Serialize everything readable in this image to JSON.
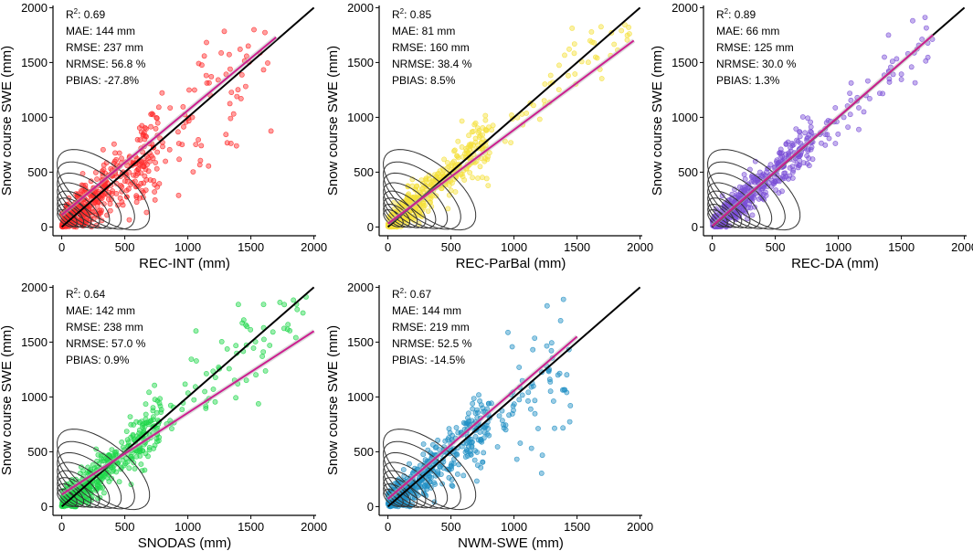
{
  "chart_data": [
    {
      "type": "scatter",
      "panel": "REC-INT",
      "xlabel": "REC-INT (mm)",
      "ylabel": "Snow course SWE (mm)",
      "xlim": [
        0,
        2000
      ],
      "ylim": [
        0,
        2000
      ],
      "xticks": [
        "0",
        "500",
        "1000",
        "1500",
        "2000"
      ],
      "yticks": [
        "0",
        "500",
        "1000",
        "1500",
        "2000"
      ],
      "point_color": "#ff2a2a",
      "fit_line": {
        "color": "#cc1f8f",
        "x": [
          0,
          1700
        ],
        "y": [
          110,
          1730
        ]
      },
      "one_to_one": {
        "color": "#000000",
        "x": [
          0,
          2000
        ],
        "y": [
          0,
          2000
        ]
      },
      "r2_label": "R",
      "r2_sup": "2",
      "r2_value": ": 0.69",
      "stats": [
        "MAE: 144 mm",
        "RMSE: 237 mm",
        "NRMSE: 56.8 %",
        "PBIAS: -27.8%"
      ],
      "point_spread": {
        "x_max": 1700,
        "skew": 0.55
      }
    },
    {
      "type": "scatter",
      "panel": "REC-ParBal",
      "xlabel": "REC-ParBal (mm)",
      "ylabel": "Snow course SWE (mm)",
      "xlim": [
        0,
        2000
      ],
      "ylim": [
        0,
        2000
      ],
      "xticks": [
        "0",
        "500",
        "1000",
        "1500",
        "2000"
      ],
      "yticks": [
        "0",
        "500",
        "1000",
        "1500",
        "2000"
      ],
      "point_color": "#f5e03a",
      "fit_line": {
        "color": "#cc1f8f",
        "x": [
          0,
          1950
        ],
        "y": [
          30,
          1700
        ]
      },
      "one_to_one": {
        "color": "#000000",
        "x": [
          0,
          2000
        ],
        "y": [
          0,
          2000
        ]
      },
      "r2_label": "R",
      "r2_sup": "2",
      "r2_value": ": 0.85",
      "stats": [
        "MAE: 81 mm",
        "RMSE: 160 mm",
        "NRMSE: 38.4 %",
        "PBIAS: 8.5%"
      ],
      "point_spread": {
        "x_max": 1950,
        "skew": 0.95
      }
    },
    {
      "type": "scatter",
      "panel": "REC-DA",
      "xlabel": "REC-DA (mm)",
      "ylabel": "Snow course SWE (mm)",
      "xlim": [
        0,
        2000
      ],
      "ylim": [
        0,
        2000
      ],
      "xticks": [
        "0",
        "500",
        "1000",
        "1500",
        "2000"
      ],
      "yticks": [
        "0",
        "500",
        "1000",
        "1500",
        "2000"
      ],
      "point_color": "#7b4fd6",
      "fit_line": {
        "color": "#cc1f8f",
        "x": [
          0,
          1750
        ],
        "y": [
          10,
          1750
        ]
      },
      "one_to_one": {
        "color": "#000000",
        "x": [
          0,
          2000
        ],
        "y": [
          0,
          2000
        ]
      },
      "r2_label": "R",
      "r2_sup": "2",
      "r2_value": ": 0.89",
      "stats": [
        "MAE: 66 mm",
        "RMSE: 125 mm",
        "NRMSE: 30.0 %",
        "PBIAS: 1.3%"
      ],
      "point_spread": {
        "x_max": 1750,
        "skew": 1.0
      }
    },
    {
      "type": "scatter",
      "panel": "SNODAS",
      "xlabel": "SNODAS (mm)",
      "ylabel": "Snow course SWE (mm)",
      "xlim": [
        0,
        2000
      ],
      "ylim": [
        0,
        2000
      ],
      "xticks": [
        "0",
        "500",
        "1000",
        "1500",
        "2000"
      ],
      "yticks": [
        "0",
        "500",
        "1000",
        "1500",
        "2000"
      ],
      "point_color": "#1fd64a",
      "fit_line": {
        "color": "#cc1f8f",
        "x": [
          0,
          2000
        ],
        "y": [
          110,
          1600
        ]
      },
      "one_to_one": {
        "color": "#000000",
        "x": [
          0,
          2000
        ],
        "y": [
          0,
          2000
        ]
      },
      "r2_label": "R",
      "r2_sup": "2",
      "r2_value": ": 0.64",
      "stats": [
        "MAE: 142 mm",
        "RMSE: 238 mm",
        "NRMSE: 57.0 %",
        "PBIAS: 0.9%"
      ],
      "point_spread": {
        "x_max": 1950,
        "skew": 0.85
      }
    },
    {
      "type": "scatter",
      "panel": "NWM-SWE",
      "xlabel": "NWM-SWE (mm)",
      "ylabel": "Snow course SWE (mm)",
      "xlim": [
        0,
        2000
      ],
      "ylim": [
        0,
        2000
      ],
      "xticks": [
        "0",
        "500",
        "1000",
        "1500",
        "2000"
      ],
      "yticks": [
        "0",
        "500",
        "1000",
        "1500",
        "2000"
      ],
      "point_color": "#1f8fc4",
      "fit_line": {
        "color": "#cc1f8f",
        "x": [
          0,
          1500
        ],
        "y": [
          70,
          1550
        ]
      },
      "one_to_one": {
        "color": "#000000",
        "x": [
          0,
          2000
        ],
        "y": [
          0,
          2000
        ]
      },
      "r2_label": "R",
      "r2_sup": "2",
      "r2_value": ": 0.67",
      "stats": [
        "MAE: 144 mm",
        "RMSE: 219 mm",
        "NRMSE: 52.5 %",
        "PBIAS: -14.5%"
      ],
      "point_spread": {
        "x_max": 1500,
        "skew": 0.7
      }
    }
  ]
}
